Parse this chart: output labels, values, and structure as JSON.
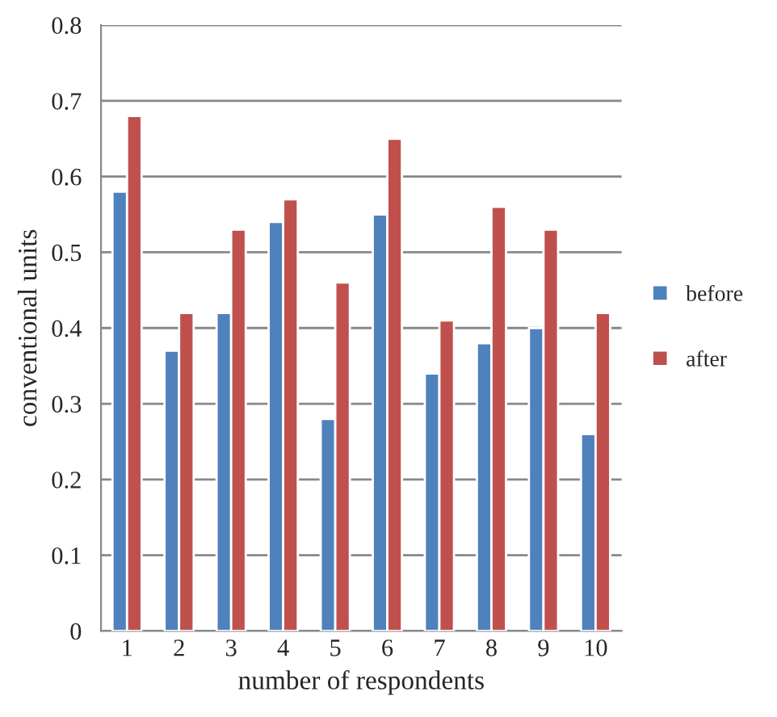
{
  "chart_data": {
    "type": "bar",
    "xlabel": "number of respondents",
    "ylabel": "conventional units",
    "categories": [
      "1",
      "2",
      "3",
      "4",
      "5",
      "6",
      "7",
      "8",
      "9",
      "10"
    ],
    "series": [
      {
        "name": "before",
        "color": "#4f81bd",
        "values": [
          0.58,
          0.37,
          0.42,
          0.54,
          0.28,
          0.55,
          0.34,
          0.38,
          0.4,
          0.26
        ]
      },
      {
        "name": "after",
        "color": "#c0504d",
        "values": [
          0.68,
          0.42,
          0.53,
          0.57,
          0.46,
          0.65,
          0.41,
          0.56,
          0.53,
          0.42
        ]
      }
    ],
    "ylim": [
      0,
      0.8
    ],
    "yticks": [
      0,
      0.1,
      0.2,
      0.3,
      0.4,
      0.5,
      0.6,
      0.7,
      0.8
    ],
    "grid": "y",
    "legend": "right"
  }
}
